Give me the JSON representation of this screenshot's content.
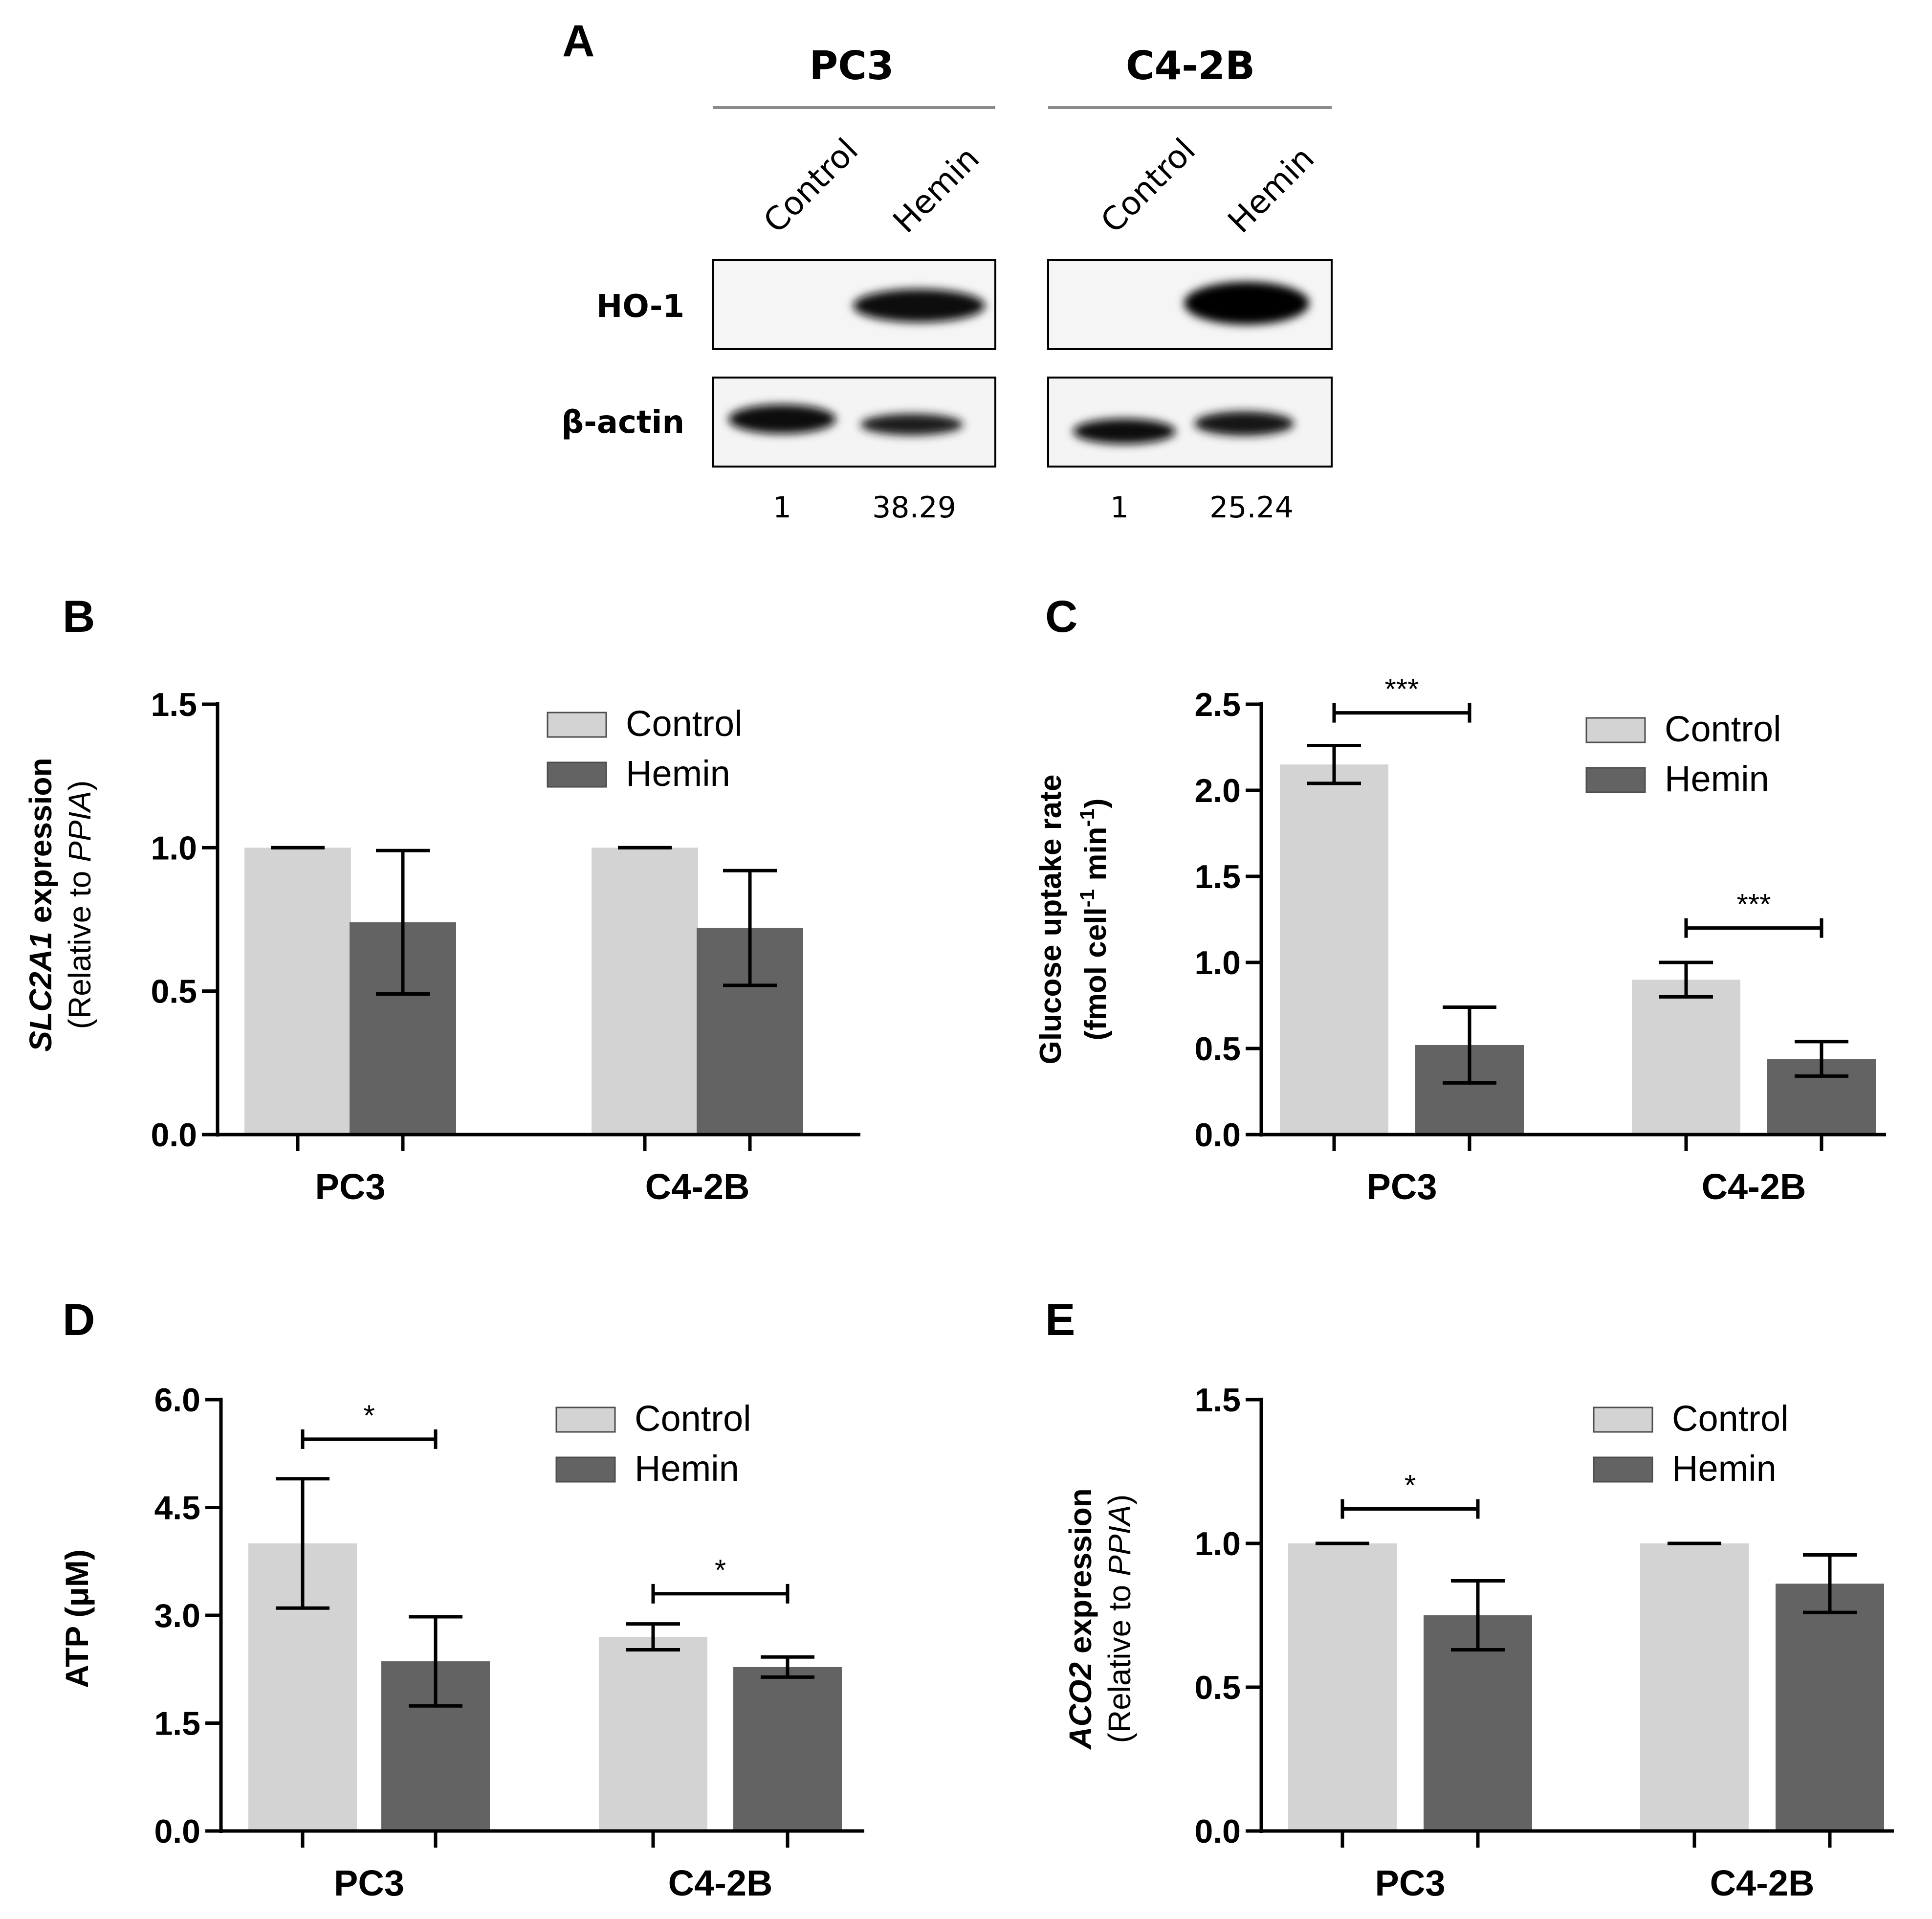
{
  "panel_a": {
    "letter": "A",
    "cell_lines": [
      "PC3",
      "C4-2B"
    ],
    "lanes": [
      "Control",
      "Hemin"
    ],
    "proteins": [
      "HO-1",
      "β-actin"
    ],
    "quant": [
      [
        "1",
        "38.29"
      ],
      [
        "1",
        "25.24"
      ]
    ]
  },
  "colors": {
    "control": "#d3d3d3",
    "hemin": "#636363",
    "axis": "#000000",
    "band": "#0d0d0d"
  },
  "chart_data": [
    {
      "id": "B",
      "letter": "B",
      "type": "bar",
      "categories": [
        "PC3",
        "C4-2B"
      ],
      "series": [
        {
          "name": "Control",
          "values": [
            1.0,
            1.0
          ],
          "errors": [
            0.0,
            0.0
          ]
        },
        {
          "name": "Hemin",
          "values": [
            0.74,
            0.72
          ],
          "errors": [
            0.25,
            0.2
          ]
        }
      ],
      "ylabel_main": "SLC2A1 expression",
      "ylabel_sub_prefix": "(Relative to ",
      "ylabel_sub_gene": "PPIA",
      "ylabel_sub_suffix": ")",
      "ylim": [
        0,
        1.5
      ],
      "yticks": [
        "0.0",
        "0.5",
        "1.0",
        "1.5"
      ],
      "significance": [],
      "legend": "top-right"
    },
    {
      "id": "C",
      "letter": "C",
      "type": "bar",
      "categories": [
        "PC3",
        "C4-2B"
      ],
      "series": [
        {
          "name": "Control",
          "values": [
            2.15,
            0.9
          ],
          "errors": [
            0.11,
            0.1
          ]
        },
        {
          "name": "Hemin",
          "values": [
            0.52,
            0.44
          ],
          "errors": [
            0.22,
            0.1
          ]
        }
      ],
      "ylabel_main": "Glucose uptake rate",
      "ylabel_sub_prefix": "(fmol cell",
      "ylabel_sub_exp1": "-1",
      "ylabel_sub_mid": " min",
      "ylabel_sub_exp2": "-1",
      "ylabel_sub_suffix": ")",
      "ylim": [
        0,
        2.5
      ],
      "yticks": [
        "0.0",
        "0.5",
        "1.0",
        "1.5",
        "2.0",
        "2.5"
      ],
      "significance": [
        {
          "category": 0,
          "label": "***",
          "y": 2.45
        },
        {
          "category": 1,
          "label": "***",
          "y": 1.2
        }
      ],
      "legend": "top-right"
    },
    {
      "id": "D",
      "letter": "D",
      "type": "bar",
      "categories": [
        "PC3",
        "C4-2B"
      ],
      "series": [
        {
          "name": "Control",
          "values": [
            4.0,
            2.7
          ],
          "errors": [
            0.9,
            0.18
          ]
        },
        {
          "name": "Hemin",
          "values": [
            2.36,
            2.28
          ],
          "errors": [
            0.62,
            0.14
          ]
        }
      ],
      "ylabel_main": "ATP (μM)",
      "ylim": [
        0,
        6.0
      ],
      "yticks": [
        "0.0",
        "1.5",
        "3.0",
        "4.5",
        "6.0"
      ],
      "significance": [
        {
          "category": 0,
          "label": "*",
          "y": 5.45
        },
        {
          "category": 1,
          "label": "*",
          "y": 3.3
        }
      ],
      "legend": "top-right"
    },
    {
      "id": "E",
      "letter": "E",
      "type": "bar",
      "categories": [
        "PC3",
        "C4-2B"
      ],
      "series": [
        {
          "name": "Control",
          "values": [
            1.0,
            1.0
          ],
          "errors": [
            0.0,
            0.0
          ]
        },
        {
          "name": "Hemin",
          "values": [
            0.75,
            0.86
          ],
          "errors": [
            0.12,
            0.1
          ]
        }
      ],
      "ylabel_main": "ACO2 expression",
      "ylabel_sub_prefix": "(Relative to ",
      "ylabel_sub_gene": "PPIA",
      "ylabel_sub_suffix": ")",
      "ylim": [
        0,
        1.5
      ],
      "yticks": [
        "0.0",
        "0.5",
        "1.0",
        "1.5"
      ],
      "significance": [
        {
          "category": 0,
          "label": "*",
          "y": 1.12
        }
      ],
      "legend": "top-right"
    }
  ]
}
